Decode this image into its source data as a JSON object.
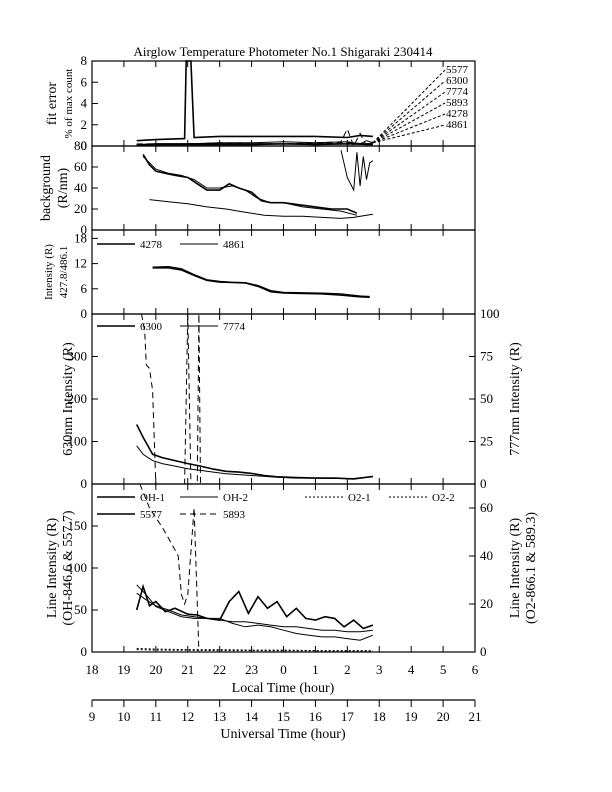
{
  "title": "Airglow Temperature Photometer No.1  Shigaraki  230414",
  "colors": {
    "ink": "#000000",
    "background": "#ffffff"
  },
  "axes": {
    "local_time": {
      "label": "Local Time (hour)",
      "range": [
        18,
        30
      ],
      "ticks": [
        "18",
        "19",
        "20",
        "21",
        "22",
        "23",
        "0",
        "1",
        "2",
        "3",
        "4",
        "5",
        "6"
      ]
    },
    "universal_time": {
      "label": "Universal Time (hour)",
      "range": [
        9,
        21
      ],
      "ticks": [
        "9",
        "10",
        "11",
        "12",
        "13",
        "14",
        "15",
        "16",
        "17",
        "18",
        "19",
        "20",
        "21"
      ]
    }
  },
  "chart_data": [
    {
      "type": "line",
      "panel": "fit-error",
      "ylabel_lines": [
        "fit error",
        "% of max count"
      ],
      "ylim": [
        0,
        8
      ],
      "yticks": [
        "0",
        "2",
        "4",
        "6",
        "8"
      ],
      "legend_labels": [
        "5577",
        "6300",
        "7774",
        "5893",
        "4278",
        "4861"
      ],
      "series": [
        {
          "name": "5577",
          "x": [
            19.4,
            20.0,
            21.0,
            22.0,
            23.0,
            24.0,
            25.0,
            26.0,
            26.4,
            26.6,
            26.8
          ],
          "y": [
            0.1,
            0.2,
            0.2,
            0.3,
            0.3,
            0.4,
            0.3,
            0.4,
            0.2,
            0.5,
            0.3
          ]
        },
        {
          "name": "6300",
          "x": [
            19.4,
            20.0,
            20.9,
            20.95,
            21.1,
            21.2,
            22.0,
            23.0,
            24.0,
            25.0,
            26.0,
            26.4,
            26.8
          ],
          "y": [
            0.5,
            0.6,
            0.7,
            8.0,
            8.0,
            0.8,
            0.9,
            0.9,
            0.9,
            0.9,
            0.8,
            1.0,
            0.9
          ]
        },
        {
          "name": "7774",
          "x": [
            19.4,
            20.0,
            21.0,
            22.0,
            23.0,
            24.0,
            25.0,
            25.8,
            26.0,
            26.2,
            26.4,
            26.6,
            26.8
          ],
          "y": [
            0.2,
            0.2,
            0.2,
            0.3,
            0.2,
            0.2,
            0.3,
            0.4,
            1.6,
            -0.2,
            1.2,
            -0.3,
            0.4
          ]
        },
        {
          "name": "5893",
          "x": [
            19.4,
            20.0,
            21.0,
            22.0,
            23.0,
            24.0,
            25.0,
            26.0,
            26.8
          ],
          "y": [
            0.1,
            0.1,
            0.2,
            0.2,
            0.2,
            0.2,
            0.2,
            0.3,
            0.2
          ]
        },
        {
          "name": "4278",
          "x": [
            19.4,
            20.0,
            21.0,
            22.0,
            23.0,
            24.0,
            25.0,
            26.0,
            26.8
          ],
          "y": [
            0.1,
            0.2,
            0.2,
            0.2,
            0.2,
            0.2,
            0.2,
            0.2,
            0.2
          ]
        },
        {
          "name": "4861",
          "x": [
            19.4,
            20.0,
            21.0,
            22.0,
            23.0,
            24.0,
            25.0,
            26.0,
            26.8
          ],
          "y": [
            0.1,
            0.1,
            0.1,
            0.1,
            0.1,
            0.2,
            0.1,
            0.2,
            0.1
          ]
        }
      ]
    },
    {
      "type": "line",
      "panel": "background",
      "ylabel_lines": [
        "background",
        "(R/nm)"
      ],
      "ylim": [
        0,
        80
      ],
      "yticks": [
        "0",
        "20",
        "40",
        "60",
        "80"
      ],
      "series": [
        {
          "name": "upper-a",
          "x": [
            19.6,
            19.8,
            20.0,
            20.3,
            20.6,
            21.0,
            21.3,
            21.6,
            22.0,
            22.3,
            22.6,
            23.0,
            23.3,
            23.6,
            24.0,
            24.5,
            25.0,
            25.5,
            26.0,
            26.3
          ],
          "y": [
            72,
            62,
            56,
            54,
            52,
            50,
            44,
            38,
            38,
            44,
            40,
            36,
            28,
            26,
            26,
            24,
            22,
            20,
            20,
            16
          ]
        },
        {
          "name": "upper-b",
          "x": [
            19.6,
            20.0,
            20.4,
            20.8,
            21.2,
            21.6,
            22.0,
            22.4,
            22.8,
            23.2,
            23.6,
            24.0,
            24.6,
            25.2,
            25.8,
            26.3
          ],
          "y": [
            70,
            58,
            54,
            52,
            48,
            40,
            40,
            42,
            38,
            30,
            26,
            26,
            22,
            20,
            18,
            14
          ]
        },
        {
          "name": "lower",
          "x": [
            19.8,
            20.4,
            21.0,
            21.6,
            22.2,
            22.8,
            23.4,
            24.0,
            24.6,
            25.2,
            25.8,
            26.2,
            26.6,
            26.8
          ],
          "y": [
            29,
            27,
            25,
            22,
            20,
            17,
            14,
            13,
            13,
            12,
            11,
            12,
            14,
            15
          ]
        },
        {
          "name": "spike",
          "x": [
            25.8,
            26.0,
            26.2,
            26.3,
            26.4,
            26.5,
            26.6,
            26.7,
            26.8
          ],
          "y": [
            76,
            50,
            38,
            74,
            42,
            70,
            48,
            64,
            66
          ]
        }
      ]
    },
    {
      "type": "line",
      "panel": "blue-intensity",
      "ylabel_lines": [
        "Intensity (R)",
        "427.8/486.1"
      ],
      "ylim": [
        0,
        20
      ],
      "yticks": [
        "0",
        "6",
        "12",
        "18"
      ],
      "legend_labels": [
        "4278",
        "4861"
      ],
      "series": [
        {
          "name": "4278",
          "x": [
            19.9,
            20.4,
            20.8,
            21.2,
            21.6,
            22.0,
            22.4,
            22.8,
            23.2,
            23.6,
            24.0,
            24.6,
            25.2,
            25.8,
            26.4,
            26.7
          ],
          "y": [
            11.0,
            11.0,
            10.5,
            9.2,
            8.0,
            7.6,
            7.5,
            7.4,
            6.6,
            5.3,
            5.0,
            4.9,
            4.8,
            4.5,
            4.1,
            4.0
          ]
        },
        {
          "name": "4861",
          "x": [
            19.9,
            20.4,
            20.8,
            21.2,
            21.6,
            22.0,
            22.4,
            22.8,
            23.2,
            23.6,
            24.0,
            24.6,
            25.2,
            25.8,
            26.4,
            26.7
          ],
          "y": [
            11.2,
            11.3,
            10.8,
            9.4,
            8.2,
            7.8,
            7.6,
            7.5,
            6.8,
            5.6,
            5.2,
            5.1,
            5.0,
            4.8,
            4.3,
            4.2
          ]
        }
      ]
    },
    {
      "type": "line",
      "panel": "red-green-intensity",
      "ylabel_left": "630nm Intensity (R)",
      "ylabel_right": "777nm Intensity (R)",
      "ylim_left": [
        0,
        400
      ],
      "ylim_right": [
        0,
        100
      ],
      "yticks_left": [
        "0",
        "100",
        "200",
        "300"
      ],
      "yticks_right": [
        "0",
        "25",
        "50",
        "75",
        "100"
      ],
      "legend_labels": [
        "6300",
        "7774"
      ],
      "series": [
        {
          "name": "6300",
          "axis": "left",
          "x": [
            19.4,
            19.6,
            19.9,
            20.2,
            20.6,
            21.0,
            21.4,
            21.8,
            22.2,
            22.6,
            23.0,
            23.4,
            23.8,
            24.4,
            25.0,
            25.6,
            26.2,
            26.8
          ],
          "y": [
            140,
            110,
            70,
            62,
            55,
            48,
            42,
            35,
            30,
            28,
            25,
            20,
            17,
            15,
            14,
            14,
            12,
            18
          ]
        },
        {
          "name": "6300-b",
          "axis": "left",
          "x": [
            19.4,
            19.6,
            19.9,
            20.2,
            20.6,
            21.0,
            21.4,
            21.8,
            22.2,
            22.6,
            23.0,
            23.4,
            23.8,
            24.4,
            25.0,
            25.6,
            26.2,
            26.8
          ],
          "y": [
            90,
            70,
            55,
            48,
            42,
            36,
            32,
            28,
            24,
            22,
            20,
            18,
            16,
            14,
            14,
            13,
            13,
            17
          ]
        },
        {
          "name": "7774",
          "axis": "right",
          "x": [
            19.55,
            19.65,
            19.7,
            19.8,
            19.9,
            20.0,
            20.9,
            21.0,
            21.1,
            21.3,
            21.35,
            21.4
          ],
          "y": [
            100,
            90,
            70,
            68,
            55,
            0,
            0,
            100,
            0,
            0,
            100,
            0
          ]
        }
      ]
    },
    {
      "type": "line",
      "panel": "line-intensity",
      "ylabel_left_lines": [
        "Line Intensity (R)",
        "(OH-846.6 & 557.7)"
      ],
      "ylabel_right_lines": [
        "Line Intensity (R)",
        "(O2-866.1 & 589.3)"
      ],
      "ylim_left": [
        0,
        200
      ],
      "ylim_right": [
        0,
        70
      ],
      "yticks_left": [
        "0",
        "50",
        "100",
        "150"
      ],
      "yticks_right": [
        "0",
        "20",
        "40",
        "60"
      ],
      "legend_labels": [
        "OH-1",
        "OH-2",
        "O2-1",
        "O2-2",
        "5577",
        "5893"
      ],
      "series": [
        {
          "name": "OH-1",
          "axis": "left",
          "x": [
            19.4,
            19.6,
            19.8,
            20.0,
            20.3,
            20.6,
            21.0,
            21.3,
            21.6,
            22.0,
            22.3,
            22.6,
            22.9,
            23.2,
            23.5,
            23.8,
            24.1,
            24.4,
            24.7,
            25.0,
            25.3,
            25.6,
            25.9,
            26.2,
            26.5,
            26.8
          ],
          "y": [
            50,
            78,
            55,
            60,
            48,
            52,
            45,
            44,
            40,
            38,
            60,
            72,
            46,
            66,
            52,
            60,
            42,
            52,
            40,
            38,
            42,
            40,
            30,
            38,
            28,
            32
          ]
        },
        {
          "name": "OH-2",
          "axis": "left",
          "x": [
            19.4,
            19.7,
            20.0,
            20.4,
            20.8,
            21.2,
            21.6,
            22.0,
            22.4,
            22.8,
            23.2,
            23.6,
            24.0,
            24.4,
            24.8,
            25.2,
            25.6,
            26.0,
            26.4,
            26.8
          ],
          "y": [
            70,
            62,
            55,
            50,
            44,
            42,
            40,
            38,
            36,
            36,
            34,
            32,
            30,
            30,
            28,
            26,
            26,
            24,
            24,
            26
          ]
        },
        {
          "name": "5577",
          "axis": "left",
          "x": [
            19.4,
            19.7,
            20.0,
            20.4,
            20.8,
            21.2,
            21.6,
            22.0,
            22.4,
            22.8,
            23.2,
            23.6,
            24.0,
            24.4,
            24.8,
            25.2,
            25.6,
            26.0,
            26.4,
            26.8
          ],
          "y": [
            80,
            68,
            54,
            48,
            42,
            40,
            40,
            40,
            34,
            30,
            32,
            30,
            26,
            22,
            20,
            18,
            18,
            16,
            14,
            20
          ]
        },
        {
          "name": "5893",
          "axis": "right",
          "x": [
            19.5,
            19.8,
            20.2,
            20.5,
            20.7,
            20.8,
            20.9,
            21.0,
            21.2,
            21.35
          ],
          "y": [
            70,
            60,
            52,
            45,
            40,
            24,
            20,
            24,
            60,
            0
          ]
        },
        {
          "name": "O2-1",
          "axis": "right",
          "x": [
            19.4,
            20.0,
            21.0,
            22.0,
            23.0,
            24.0,
            25.0,
            26.0,
            26.8
          ],
          "y": [
            1.5,
            1.2,
            1.0,
            1.0,
            0.8,
            0.8,
            0.6,
            0.6,
            0.6
          ]
        },
        {
          "name": "O2-2",
          "axis": "right",
          "x": [
            19.4,
            20.0,
            21.0,
            22.0,
            23.0,
            24.0,
            25.0,
            26.0,
            26.8
          ],
          "y": [
            1.0,
            0.8,
            0.7,
            0.6,
            0.6,
            0.5,
            0.5,
            0.4,
            0.4
          ]
        }
      ]
    }
  ]
}
